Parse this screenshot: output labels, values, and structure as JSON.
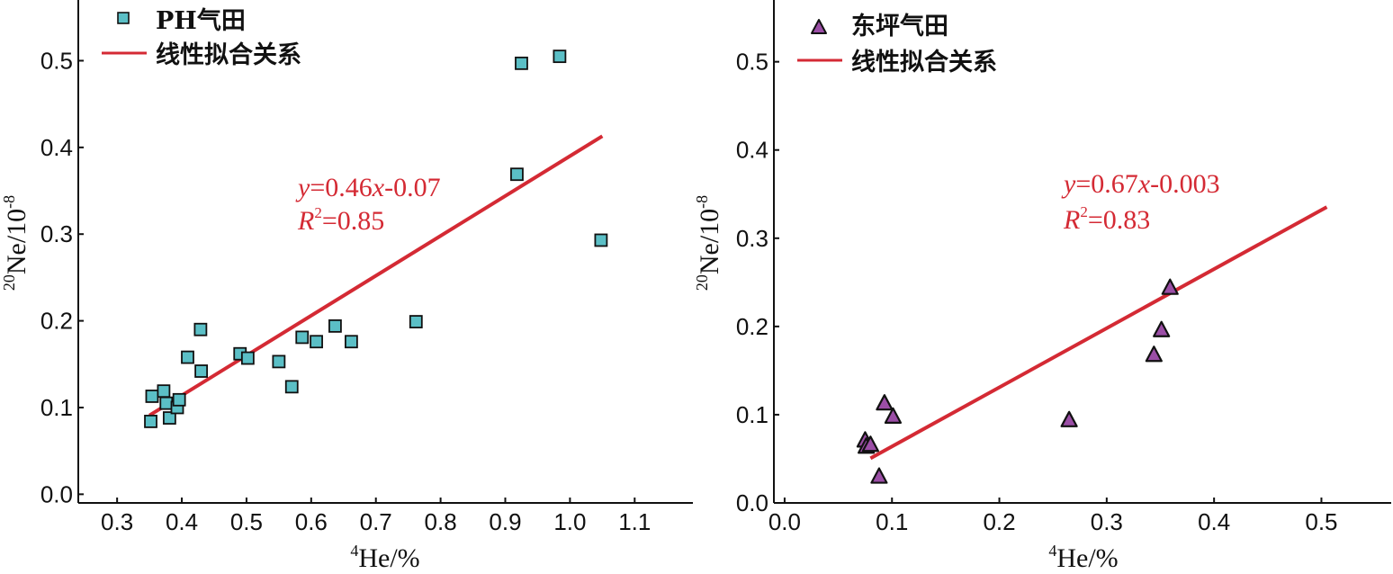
{
  "chart_data": [
    {
      "type": "scatter",
      "xlabel_sup": "4",
      "xlabel": "He/%",
      "ylabel_sup": "20",
      "ylabel": "Ne/10",
      "ylabel_exp": "-8",
      "xlim": [
        0.24,
        1.19
      ],
      "ylim": [
        -0.01,
        0.57
      ],
      "xticks": [
        "0.3",
        "0.4",
        "0.5",
        "0.6",
        "0.7",
        "0.8",
        "0.9",
        "1.0",
        "1.1"
      ],
      "yticks": [
        "0.0",
        "0.1",
        "0.2",
        "0.3",
        "0.4",
        "0.5"
      ],
      "marker": "square",
      "marker_color": "#5bbfc6",
      "line_color": "#d42a34",
      "legend": {
        "placement": "top-left",
        "series_label": "PH气田",
        "fit_label": "线性拟合关系"
      },
      "series": [
        {
          "name": "PH气田",
          "points": [
            [
              0.352,
              0.084
            ],
            [
              0.354,
              0.113
            ],
            [
              0.372,
              0.119
            ],
            [
              0.376,
              0.105
            ],
            [
              0.381,
              0.088
            ],
            [
              0.393,
              0.1
            ],
            [
              0.396,
              0.109
            ],
            [
              0.409,
              0.158
            ],
            [
              0.429,
              0.19
            ],
            [
              0.43,
              0.142
            ],
            [
              0.49,
              0.162
            ],
            [
              0.502,
              0.157
            ],
            [
              0.55,
              0.153
            ],
            [
              0.57,
              0.124
            ],
            [
              0.586,
              0.181
            ],
            [
              0.608,
              0.176
            ],
            [
              0.637,
              0.194
            ],
            [
              0.662,
              0.176
            ],
            [
              0.762,
              0.199
            ],
            [
              0.918,
              0.369
            ],
            [
              0.925,
              0.497
            ],
            [
              0.984,
              0.505
            ],
            [
              1.048,
              0.293
            ]
          ]
        }
      ],
      "fit": {
        "slope": 0.46,
        "intercept": -0.07,
        "x_range": [
          0.35,
          1.05
        ],
        "equation_y": "y",
        "equation_body": "=0.46",
        "equation_x": "x",
        "equation_tail": "-0.07",
        "r2_label": "R",
        "r2_sup": "2",
        "r2_value": "=0.85"
      }
    },
    {
      "type": "scatter",
      "xlabel_sup": "4",
      "xlabel": "He/%",
      "ylabel_sup": "20",
      "ylabel": "Ne/10",
      "ylabel_exp": "-8",
      "xlim": [
        -0.01,
        0.565
      ],
      "ylim": [
        0.0,
        0.57
      ],
      "xticks": [
        "0.0",
        "0.1",
        "0.2",
        "0.3",
        "0.4",
        "0.5"
      ],
      "yticks": [
        "0.0",
        "0.1",
        "0.2",
        "0.3",
        "0.4",
        "0.5"
      ],
      "marker": "triangle",
      "marker_color": "#9b4ea6",
      "line_color": "#d42a34",
      "legend": {
        "placement": "top-left",
        "series_label": "东坪气田",
        "fit_label": "线性拟合关系"
      },
      "series": [
        {
          "name": "东坪气田",
          "points": [
            [
              0.075,
              0.071
            ],
            [
              0.076,
              0.064
            ],
            [
              0.08,
              0.066
            ],
            [
              0.088,
              0.03
            ],
            [
              0.093,
              0.113
            ],
            [
              0.101,
              0.098
            ],
            [
              0.265,
              0.094
            ],
            [
              0.344,
              0.168
            ],
            [
              0.351,
              0.196
            ],
            [
              0.359,
              0.244
            ]
          ]
        }
      ],
      "fit": {
        "slope": 0.67,
        "intercept": -0.003,
        "x_range": [
          0.08,
          0.505
        ],
        "equation_y": "y",
        "equation_body": "=0.67",
        "equation_x": "x",
        "equation_tail": "-0.003",
        "r2_label": "R",
        "r2_sup": "2",
        "r2_value": "=0.83"
      }
    }
  ]
}
